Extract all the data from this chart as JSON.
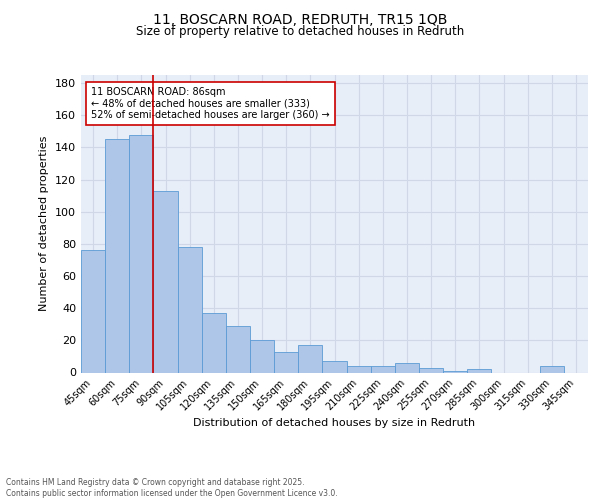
{
  "title1": "11, BOSCARN ROAD, REDRUTH, TR15 1QB",
  "title2": "Size of property relative to detached houses in Redruth",
  "xlabel": "Distribution of detached houses by size in Redruth",
  "ylabel": "Number of detached properties",
  "categories": [
    "45sqm",
    "60sqm",
    "75sqm",
    "90sqm",
    "105sqm",
    "120sqm",
    "135sqm",
    "150sqm",
    "165sqm",
    "180sqm",
    "195sqm",
    "210sqm",
    "225sqm",
    "240sqm",
    "255sqm",
    "270sqm",
    "285sqm",
    "300sqm",
    "315sqm",
    "330sqm",
    "345sqm"
  ],
  "values": [
    76,
    145,
    148,
    113,
    78,
    37,
    29,
    20,
    13,
    17,
    7,
    4,
    4,
    6,
    3,
    1,
    2,
    0,
    0,
    4,
    0
  ],
  "bar_color": "#aec6e8",
  "bar_edge_color": "#5b9bd5",
  "grid_color": "#d0d8e8",
  "background_color": "#e8eef8",
  "vline_x": 2.5,
  "vline_color": "#cc0000",
  "annotation_text": "11 BOSCARN ROAD: 86sqm\n← 48% of detached houses are smaller (333)\n52% of semi-detached houses are larger (360) →",
  "annotation_box_color": "#ffffff",
  "annotation_box_edge": "#cc0000",
  "footer": "Contains HM Land Registry data © Crown copyright and database right 2025.\nContains public sector information licensed under the Open Government Licence v3.0.",
  "ylim": [
    0,
    185
  ]
}
